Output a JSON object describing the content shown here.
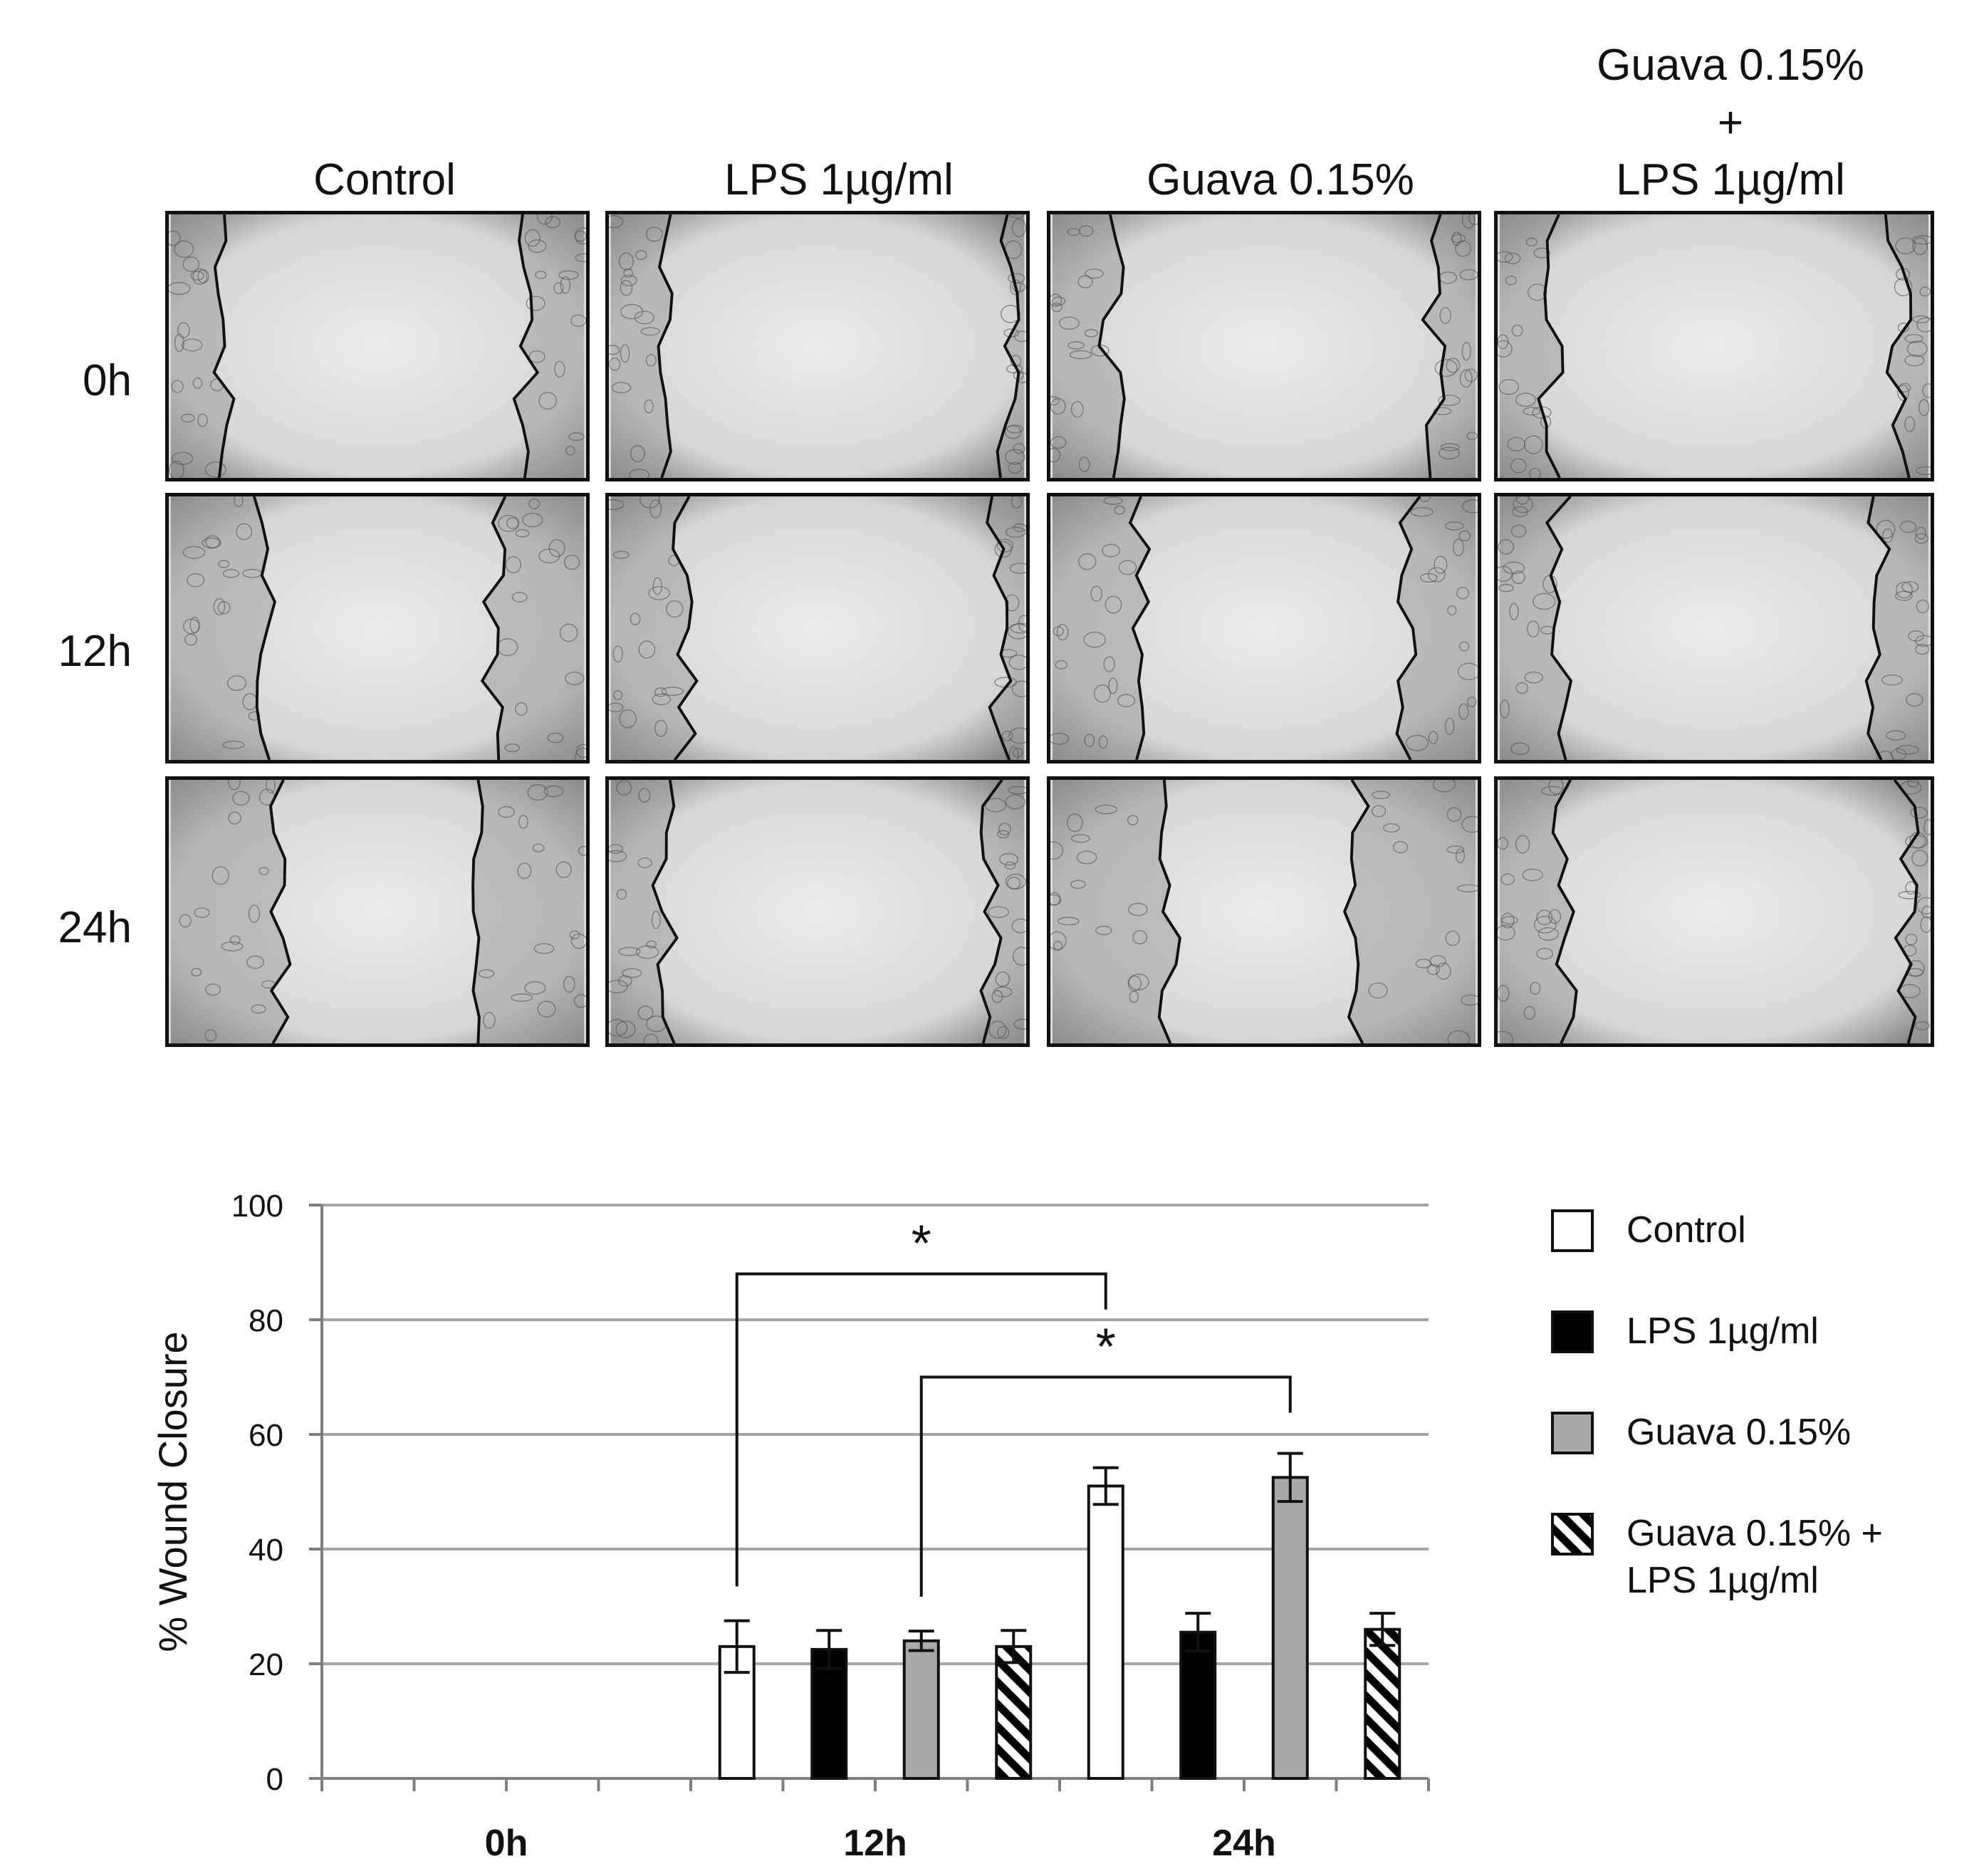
{
  "figure": {
    "column_labels": [
      "Control",
      "LPS 1µg/ml",
      "Guava 0.15%",
      "Guava 0.15%\n+\nLPS 1µg/ml"
    ],
    "row_labels": [
      "0h",
      "12h",
      "24h"
    ]
  },
  "chart_data": {
    "type": "bar",
    "categories": [
      "0h",
      "12h",
      "24h"
    ],
    "ylabel": "% Wound Closure",
    "ylim": [
      0,
      100
    ],
    "yticks": [
      0,
      20,
      40,
      60,
      80,
      100
    ],
    "grid": true,
    "legend_position": "right",
    "series": [
      {
        "name": "Control",
        "fill": "white",
        "values": [
          0,
          23,
          51
        ],
        "errors": [
          0,
          4.5,
          3.2
        ]
      },
      {
        "name": "LPS 1µg/ml",
        "fill": "black",
        "values": [
          0,
          22.5,
          25.5
        ],
        "errors": [
          0,
          3.3,
          3.3
        ]
      },
      {
        "name": "Guava 0.15%",
        "fill": "gray",
        "values": [
          0,
          24,
          52.5
        ],
        "errors": [
          0,
          1.7,
          4.2
        ]
      },
      {
        "name": "Guava 0.15% + LPS 1µg/ml",
        "fill": "hatched",
        "values": [
          0,
          23,
          26
        ],
        "errors": [
          0,
          2.8,
          2.8
        ]
      }
    ],
    "annotations": [
      {
        "text": "*",
        "from": [
          "12h",
          "Control"
        ],
        "to": [
          "24h",
          "Control"
        ]
      },
      {
        "text": "*",
        "from": [
          "12h",
          "Guava 0.15%"
        ],
        "to": [
          "24h",
          "Guava 0.15%"
        ]
      }
    ],
    "colors": {
      "gray": "#a9a9a9",
      "black": "#000000",
      "grid": "#a6a6a6"
    }
  }
}
